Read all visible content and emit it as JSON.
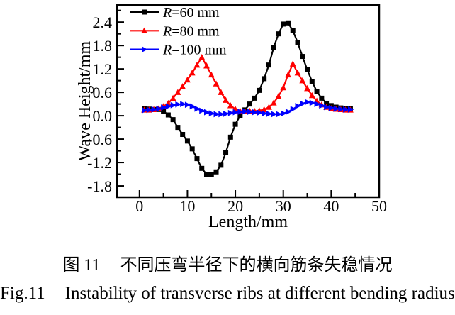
{
  "figure": {
    "captions": {
      "zh_prefix": "图 11",
      "zh_body": "不同压弯半径下的横向筋条失稳情况",
      "en_prefix": "Fig.11",
      "en_body": "Instability of transverse ribs at different bending radius",
      "en_italic": "R"
    }
  },
  "chart_data": {
    "type": "line",
    "title": "",
    "xlabel": "Length/mm",
    "ylabel": "Wave Height/mm",
    "grid": false,
    "legend_position": "top-left",
    "xlim": [
      -4.7,
      50
    ],
    "ylim": [
      -2.09,
      2.84
    ],
    "x_ticks": [
      0,
      10,
      20,
      30,
      40,
      50
    ],
    "x_tick_labels": [
      "0",
      "10",
      "20",
      "30",
      "40",
      "50"
    ],
    "x_minor_ticks": [
      5,
      15,
      25,
      35,
      45
    ],
    "y_ticks": [
      2.4,
      1.8,
      1.2,
      0.6,
      0.0,
      -0.6,
      -1.2,
      -1.8
    ],
    "y_tick_labels": [
      "2.4",
      "1.8",
      "1.2",
      "0.6",
      "0.0",
      "-0.6",
      "-1.2",
      "-1.8"
    ],
    "y_minor_ticks": [
      2.7,
      2.1,
      1.5,
      0.9,
      0.3,
      -0.3,
      -0.9,
      -1.5
    ],
    "x": [
      1,
      2,
      3,
      4,
      5,
      6,
      7,
      8,
      9,
      10,
      11,
      12,
      13,
      14,
      15,
      16,
      17,
      18,
      19,
      20,
      21,
      22,
      23,
      24,
      25,
      26,
      27,
      28,
      29,
      30,
      31,
      32,
      33,
      34,
      35,
      36,
      37,
      38,
      39,
      40,
      41,
      42,
      43,
      44
    ],
    "series": [
      {
        "id": "r60",
        "name": "R=60 mm",
        "color": "#000000",
        "marker": "square",
        "values": [
          0.18,
          0.17,
          0.16,
          0.16,
          0.12,
          0.02,
          -0.1,
          -0.3,
          -0.48,
          -0.65,
          -0.85,
          -1.1,
          -1.35,
          -1.5,
          -1.5,
          -1.44,
          -1.27,
          -0.95,
          -0.55,
          -0.22,
          0.0,
          0.15,
          0.3,
          0.45,
          0.65,
          0.95,
          1.3,
          1.75,
          2.1,
          2.35,
          2.38,
          2.18,
          1.88,
          1.52,
          1.18,
          0.88,
          0.62,
          0.45,
          0.32,
          0.26,
          0.22,
          0.2,
          0.18,
          0.18
        ]
      },
      {
        "id": "r80",
        "name": "R=80 mm",
        "color": "#ff0000",
        "marker": "triangle-up",
        "values": [
          0.15,
          0.15,
          0.16,
          0.18,
          0.24,
          0.32,
          0.45,
          0.6,
          0.75,
          0.92,
          1.1,
          1.3,
          1.5,
          1.28,
          1.05,
          0.82,
          0.6,
          0.4,
          0.26,
          0.17,
          0.12,
          0.11,
          0.12,
          0.12,
          0.13,
          0.16,
          0.22,
          0.33,
          0.5,
          0.72,
          1.05,
          1.33,
          1.1,
          0.9,
          0.7,
          0.52,
          0.38,
          0.28,
          0.22,
          0.19,
          0.17,
          0.16,
          0.15,
          0.15
        ]
      },
      {
        "id": "r100",
        "name": "R=100 mm",
        "color": "#0000ff",
        "marker": "triangle-right",
        "values": [
          0.14,
          0.15,
          0.16,
          0.18,
          0.21,
          0.24,
          0.27,
          0.29,
          0.3,
          0.28,
          0.24,
          0.18,
          0.13,
          0.09,
          0.06,
          0.04,
          0.04,
          0.05,
          0.07,
          0.09,
          0.1,
          0.11,
          0.1,
          0.09,
          0.08,
          0.06,
          0.05,
          0.04,
          0.04,
          0.06,
          0.1,
          0.17,
          0.25,
          0.31,
          0.35,
          0.33,
          0.3,
          0.26,
          0.22,
          0.2,
          0.18,
          0.17,
          0.16,
          0.16
        ]
      }
    ]
  }
}
